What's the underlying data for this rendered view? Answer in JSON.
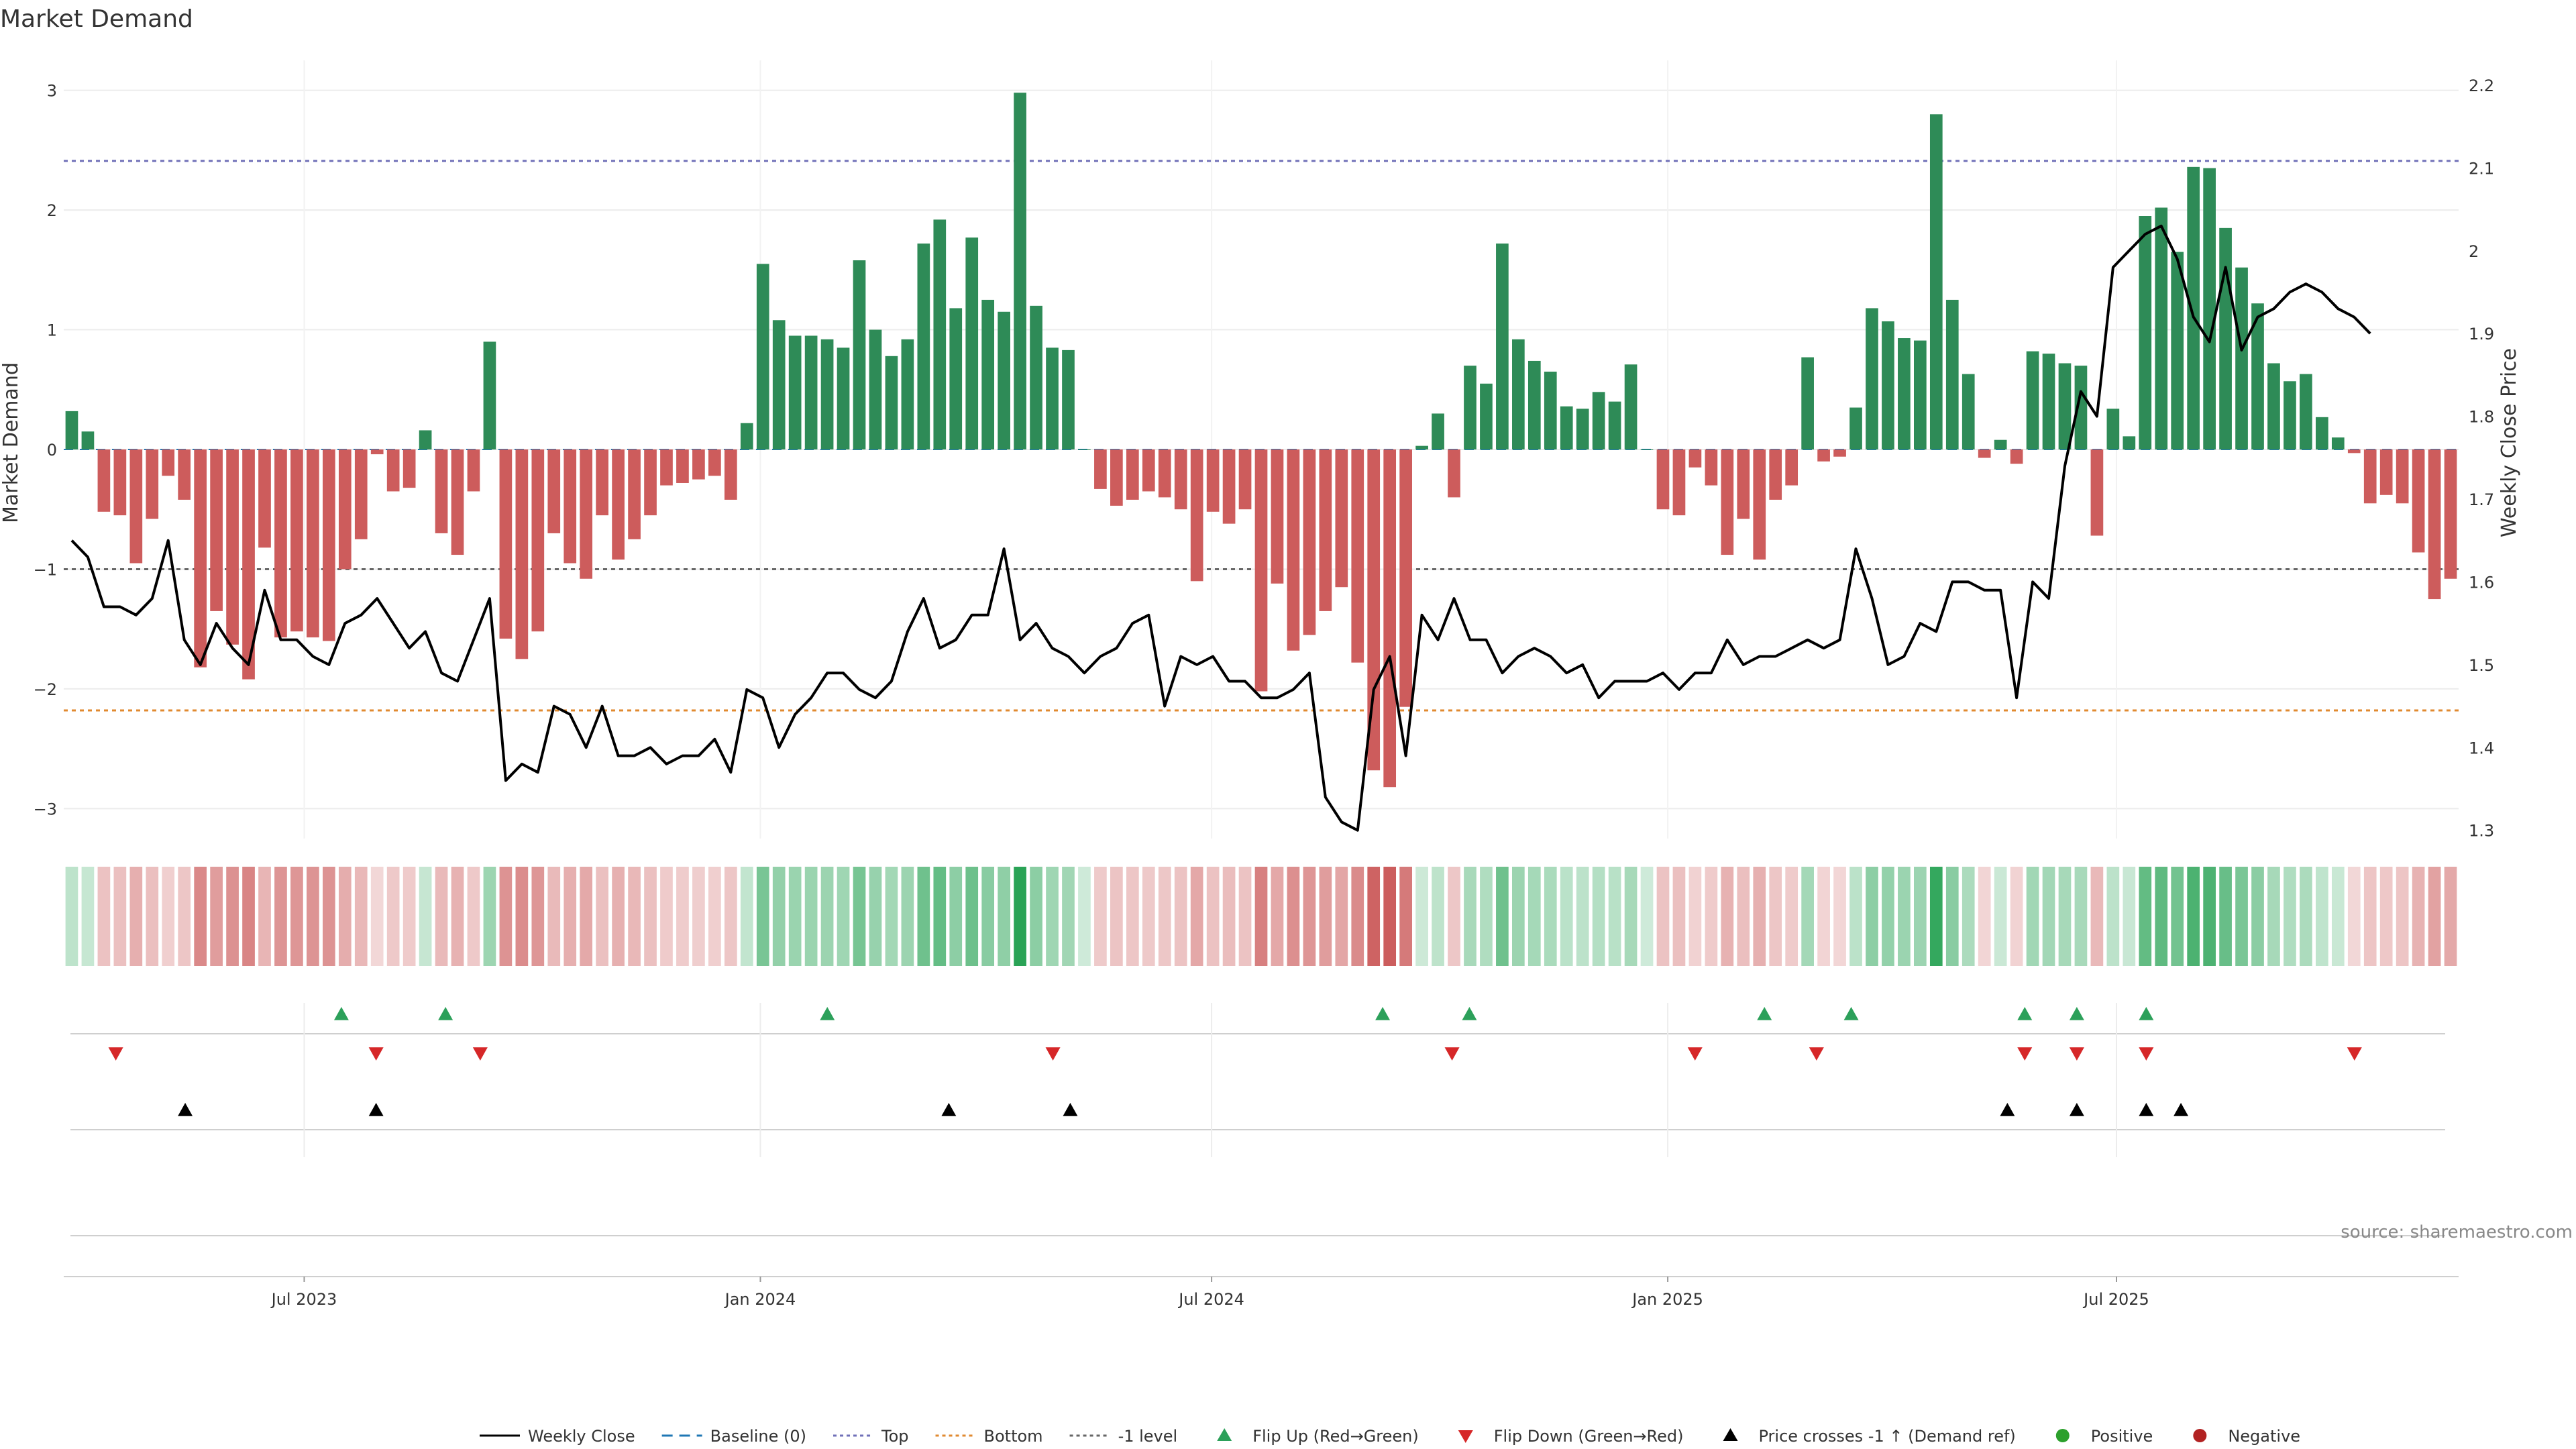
{
  "chart_data": {
    "type": "bar",
    "title": "Market Demand",
    "ylabel_left": "Market Demand",
    "ylabel_right": "Weekly Close Price",
    "ylim_left": [
      -3.25,
      3.25
    ],
    "ylim_right": [
      1.29,
      2.23
    ],
    "yticks_left": [
      "3",
      "2",
      "1",
      "0",
      "−1",
      "−2",
      "−3"
    ],
    "yticks_right": [
      "2.2",
      "2.1",
      "2",
      "1.9",
      "1.8",
      "1.7",
      "1.6",
      "1.5",
      "1.4",
      "1.3"
    ],
    "x_start": "2023-03-26",
    "x_end": "2025-11-16",
    "xtick_labels": [
      "Jul 2023",
      "Jan 2024",
      "Jul 2024",
      "Jan 2025",
      "Jul 2025"
    ],
    "xtick_dates": [
      "2023-07-01",
      "2024-01-01",
      "2024-07-01",
      "2025-01-01",
      "2025-07-01"
    ],
    "reference_lines": {
      "top": 2.41,
      "bottom": -2.18,
      "minus_one": -1
    },
    "demand": [
      0.32,
      0.15,
      -0.52,
      -0.55,
      -0.95,
      -0.58,
      -0.22,
      -0.42,
      -1.82,
      -1.35,
      -1.63,
      -1.92,
      -0.82,
      -1.57,
      -1.52,
      -1.57,
      -1.6,
      -1.0,
      -0.75,
      -0.04,
      -0.35,
      -0.32,
      0.16,
      -0.7,
      -0.88,
      -0.35,
      0.9,
      -1.58,
      -1.75,
      -1.52,
      -0.7,
      -0.95,
      -1.08,
      -0.55,
      -0.92,
      -0.75,
      -0.55,
      -0.3,
      -0.28,
      -0.25,
      -0.22,
      -0.42,
      0.22,
      1.55,
      1.08,
      0.95,
      0.95,
      0.92,
      0.85,
      1.58,
      1.0,
      0.78,
      0.92,
      1.72,
      1.92,
      1.18,
      1.77,
      1.25,
      1.15,
      2.98,
      1.2,
      0.85,
      0.83,
      0.0,
      -0.33,
      -0.47,
      -0.42,
      -0.35,
      -0.4,
      -0.5,
      -1.1,
      -0.52,
      -0.62,
      -0.5,
      -2.02,
      -1.12,
      -1.68,
      -1.55,
      -1.35,
      -1.15,
      -1.78,
      -2.68,
      -2.82,
      -2.15,
      0.03,
      0.3,
      -0.4,
      0.7,
      0.55,
      1.72,
      0.92,
      0.74,
      0.65,
      0.36,
      0.34,
      0.48,
      0.4,
      0.71,
      0.0,
      -0.5,
      -0.55,
      -0.15,
      -0.3,
      -0.88,
      -0.58,
      -0.92,
      -0.42,
      -0.3,
      0.77,
      -0.1,
      -0.06,
      0.35,
      1.18,
      1.07,
      0.93,
      0.91,
      2.8,
      1.25,
      0.63,
      -0.07,
      0.08,
      -0.12,
      0.82,
      0.8,
      0.72,
      0.7,
      -0.72,
      0.34,
      0.11,
      1.95,
      2.02,
      1.65,
      2.36,
      2.35,
      1.85,
      1.52,
      1.22,
      0.72,
      0.57,
      0.63,
      0.27,
      0.1,
      -0.03,
      -0.45,
      -0.38,
      -0.45,
      -0.86,
      -1.25,
      -1.08
    ],
    "weekly_close": [
      1.65,
      1.63,
      1.57,
      1.57,
      1.56,
      1.58,
      1.65,
      1.53,
      1.5,
      1.55,
      1.52,
      1.5,
      1.59,
      1.53,
      1.53,
      1.51,
      1.5,
      1.55,
      1.56,
      1.58,
      1.55,
      1.52,
      1.54,
      1.49,
      1.48,
      1.53,
      1.58,
      1.36,
      1.38,
      1.37,
      1.45,
      1.44,
      1.4,
      1.45,
      1.39,
      1.39,
      1.4,
      1.38,
      1.39,
      1.39,
      1.41,
      1.37,
      1.47,
      1.46,
      1.4,
      1.44,
      1.46,
      1.49,
      1.49,
      1.47,
      1.46,
      1.48,
      1.54,
      1.58,
      1.52,
      1.53,
      1.56,
      1.56,
      1.64,
      1.53,
      1.55,
      1.52,
      1.51,
      1.49,
      1.51,
      1.52,
      1.55,
      1.56,
      1.45,
      1.51,
      1.5,
      1.51,
      1.48,
      1.48,
      1.46,
      1.46,
      1.47,
      1.49,
      1.34,
      1.31,
      1.3,
      1.47,
      1.51,
      1.39,
      1.56,
      1.53,
      1.58,
      1.53,
      1.53,
      1.49,
      1.51,
      1.52,
      1.51,
      1.49,
      1.5,
      1.46,
      1.48,
      1.48,
      1.48,
      1.49,
      1.47,
      1.49,
      1.49,
      1.53,
      1.5,
      1.51,
      1.51,
      1.52,
      1.53,
      1.52,
      1.53,
      1.64,
      1.58,
      1.5,
      1.51,
      1.55,
      1.54,
      1.6,
      1.6,
      1.59,
      1.59,
      1.46,
      1.6,
      1.58,
      1.74,
      1.83,
      1.8,
      1.98,
      2.0,
      2.02,
      2.03,
      1.99,
      1.92,
      1.89,
      1.98,
      1.88,
      1.92,
      1.93,
      1.95,
      1.96,
      1.95,
      1.93,
      1.92,
      1.9
    ],
    "flip_up": [
      "2023-07-16",
      "2023-08-27",
      "2024-01-28",
      "2024-09-08",
      "2024-10-13",
      "2025-02-09",
      "2025-03-16",
      "2025-05-25",
      "2025-06-15",
      "2025-07-13"
    ],
    "flip_down": [
      "2023-04-16",
      "2023-07-30",
      "2023-09-10",
      "2024-04-28",
      "2024-10-06",
      "2025-01-12",
      "2025-03-02",
      "2025-05-25",
      "2025-06-15",
      "2025-07-13",
      "2025-10-05"
    ],
    "price_cross": [
      "2023-05-14",
      "2023-07-30",
      "2024-03-17",
      "2024-05-05",
      "2025-05-18",
      "2025-06-15",
      "2025-07-13",
      "2025-07-27"
    ],
    "legend": [
      "Weekly Close",
      "Baseline (0)",
      "Top",
      "Bottom",
      "-1 level",
      "Flip Up (Red→Green)",
      "Flip Down (Green→Red)",
      "Price crosses -1 ↑ (Demand ref)",
      "Positive",
      "Negative"
    ],
    "source": "source: sharemaestro.com",
    "colors": {
      "positive": "#2e8b57",
      "negative": "#cd5c5c",
      "price": "#000000",
      "top": "#7070b8",
      "bottom": "#e08a30",
      "minus_one": "#666666",
      "baseline": "#1f77b4",
      "flip_up": "#2ca05a",
      "flip_down": "#d62728",
      "legend_positive": "#2ca02c",
      "legend_negative": "#b22222"
    }
  }
}
